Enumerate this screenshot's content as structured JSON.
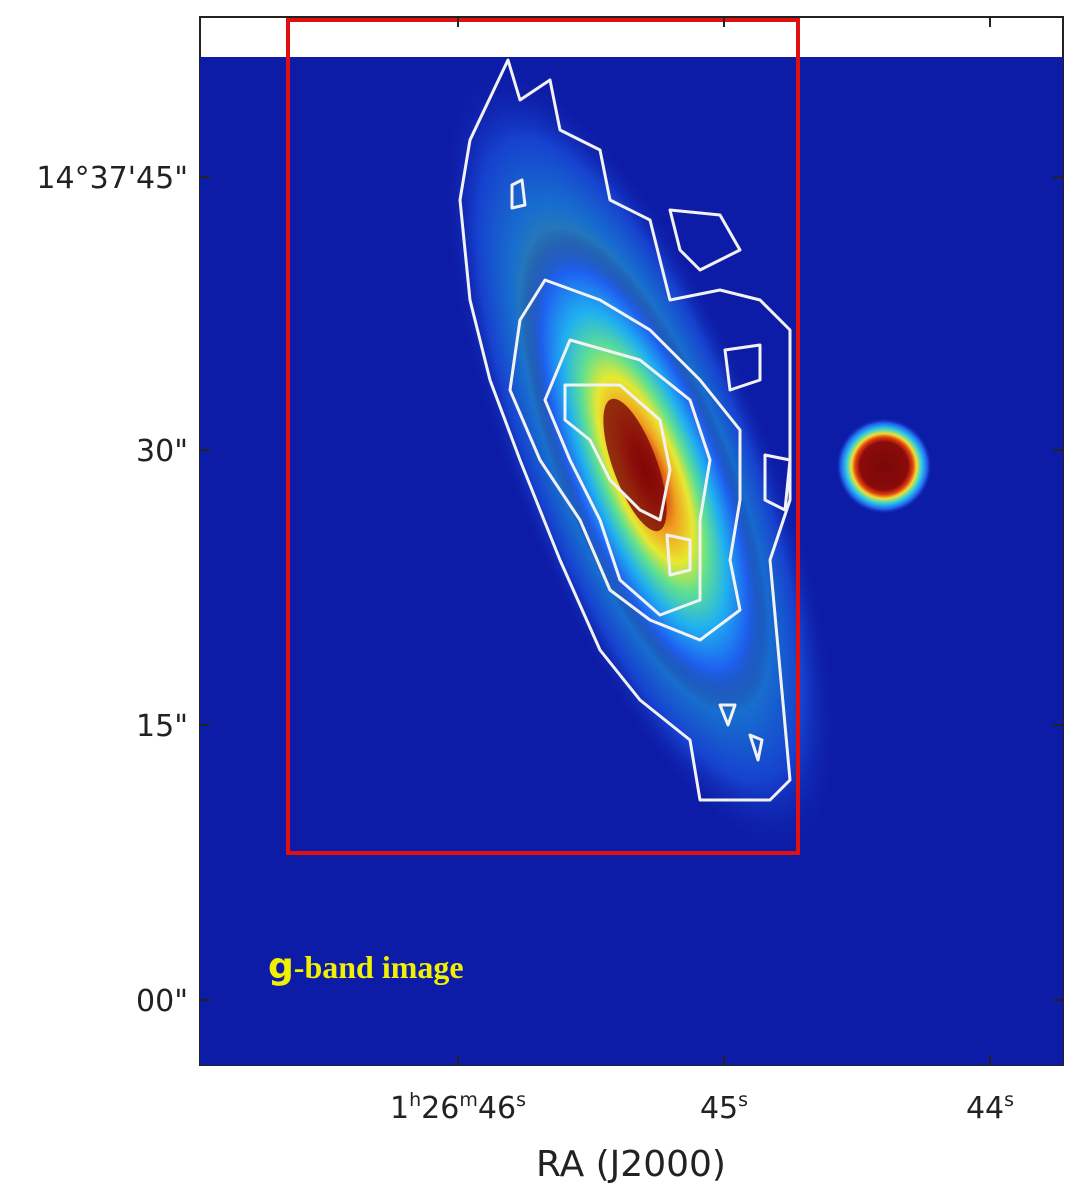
{
  "axes": {
    "x_label": "RA (J2000)",
    "y_ticks": [
      "14°37'45\"",
      "30\"",
      "15\"",
      "00\""
    ],
    "x_ticks": [
      [
        "1",
        "h",
        "26",
        "m",
        "46",
        "s"
      ],
      [
        "45",
        "s"
      ],
      [
        "44",
        "s"
      ]
    ]
  },
  "annotation": [
    "g",
    "-band image"
  ]
}
